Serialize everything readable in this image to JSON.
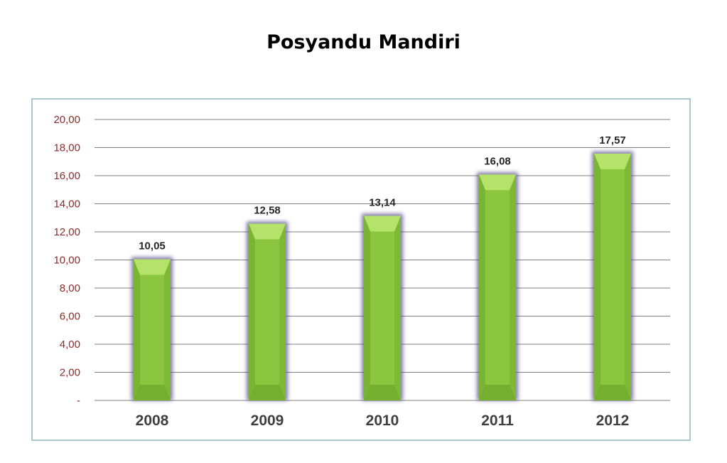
{
  "chart_data": {
    "type": "bar",
    "title": "Posyandu Mandiri",
    "xlabel": "",
    "ylabel": "",
    "categories": [
      "2008",
      "2009",
      "2010",
      "2011",
      "2012"
    ],
    "values": [
      10.05,
      12.58,
      13.14,
      16.08,
      17.57
    ],
    "value_labels": [
      "10,05",
      "12,58",
      "13,14",
      "16,08",
      "17,57"
    ],
    "ylim": [
      0,
      20
    ],
    "y_ticks": [
      0,
      2,
      4,
      6,
      8,
      10,
      12,
      14,
      16,
      18,
      20
    ],
    "y_tick_labels": [
      "-",
      "2,00",
      "4,00",
      "6,00",
      "8,00",
      "10,00",
      "12,00",
      "14,00",
      "16,00",
      "18,00",
      "20,00"
    ],
    "grid": true,
    "legend": "none",
    "colors": {
      "bar": "#8cc63f",
      "bar_light": "#b5e36a",
      "bar_dark": "#6aa52a",
      "bar_glow": "#5a4f8c",
      "gridline": "#7f7f7f",
      "y_tick_text": "#8b2a2a",
      "x_tick_text": "#3f3f3f",
      "frame": "#a9c7cc"
    }
  }
}
